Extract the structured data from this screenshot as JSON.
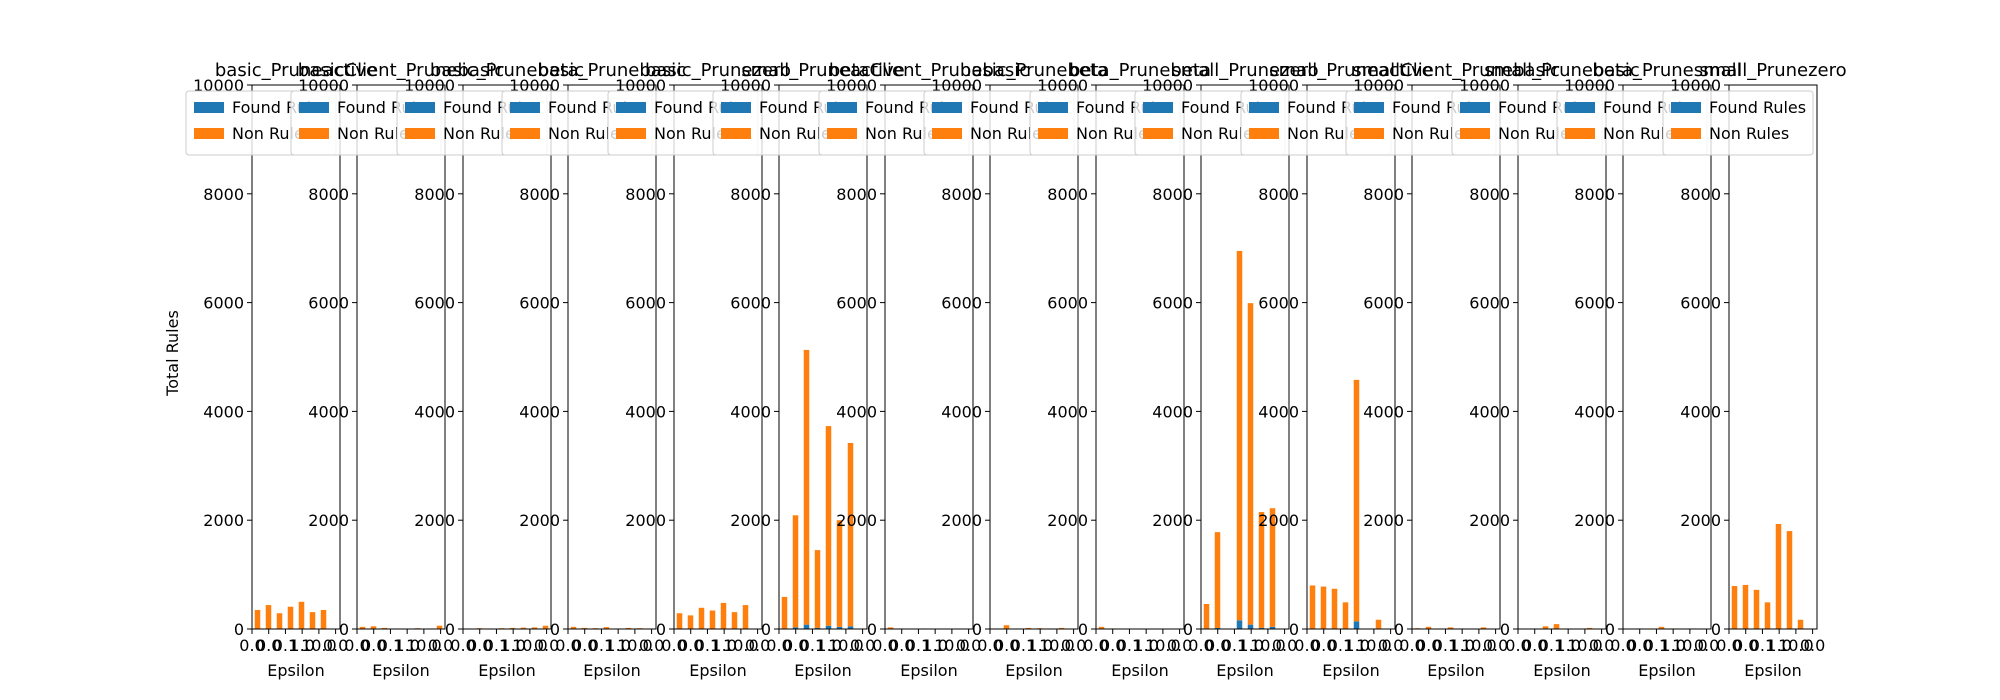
{
  "figure": {
    "ylabel": "Total Rules",
    "colors": {
      "found": "#1f77b4",
      "non": "#ff7f0e",
      "axis": "#000000",
      "legend_border": "#cccccc"
    }
  },
  "chart_data": [
    {
      "type": "bar",
      "stacked": true,
      "title": "basic_Pruneactive",
      "xlabel": "Epsilon",
      "ylabel": "Total Rules",
      "ylim": [
        0,
        10000
      ],
      "yticks": [
        0,
        2000,
        4000,
        6000,
        8000,
        10000
      ],
      "xticklabels": [
        "0.0",
        "0.0",
        "0.1",
        "1.0",
        "10.0",
        "0.0"
      ],
      "legend_position": "top-right",
      "series": [
        {
          "name": "Found Rules",
          "values": [
            0,
            0,
            0,
            0,
            0,
            0,
            0,
            0
          ]
        },
        {
          "name": "Non Rules",
          "values": [
            350,
            440,
            290,
            410,
            500,
            310,
            350,
            0
          ]
        }
      ]
    },
    {
      "type": "bar",
      "stacked": true,
      "title": "basicClient_Prunebasic",
      "xlabel": "Epsilon",
      "ylabel": "",
      "ylim": [
        0,
        10000
      ],
      "yticks": [
        0,
        2000,
        4000,
        6000,
        8000,
        10000
      ],
      "xticklabels": [
        "0.0",
        "0.0",
        "0.1",
        "1.0",
        "10.0",
        "0.0"
      ],
      "legend_position": "top-right",
      "series": [
        {
          "name": "Found Rules",
          "values": [
            0,
            0,
            0,
            0,
            0,
            0,
            0,
            0
          ]
        },
        {
          "name": "Non Rules",
          "values": [
            40,
            50,
            20,
            10,
            5,
            15,
            10,
            60
          ]
        }
      ]
    },
    {
      "type": "bar",
      "stacked": true,
      "title": "basic_Prunebasic",
      "xlabel": "Epsilon",
      "ylabel": "",
      "ylim": [
        0,
        10000
      ],
      "yticks": [
        0,
        2000,
        4000,
        6000,
        8000,
        10000
      ],
      "xticklabels": [
        "0.0",
        "0.0",
        "0.1",
        "1.0",
        "10.0",
        "0.0"
      ],
      "legend_position": "top-right",
      "series": [
        {
          "name": "Found Rules",
          "values": [
            0,
            0,
            0,
            0,
            0,
            0,
            0,
            0
          ]
        },
        {
          "name": "Non Rules",
          "values": [
            10,
            15,
            10,
            15,
            20,
            25,
            30,
            60
          ]
        }
      ]
    },
    {
      "type": "bar",
      "stacked": true,
      "title": "beta_Prunebasic",
      "xlabel": "Epsilon",
      "ylabel": "",
      "ylim": [
        0,
        10000
      ],
      "yticks": [
        0,
        2000,
        4000,
        6000,
        8000,
        10000
      ],
      "xticklabels": [
        "0.0",
        "0.0",
        "0.1",
        "1.0",
        "10.0",
        "0.0"
      ],
      "legend_position": "top-right",
      "series": [
        {
          "name": "Found Rules",
          "values": [
            0,
            0,
            0,
            0,
            0,
            0,
            0,
            0
          ]
        },
        {
          "name": "Non Rules",
          "values": [
            40,
            20,
            15,
            35,
            10,
            20,
            15,
            10
          ]
        }
      ]
    },
    {
      "type": "bar",
      "stacked": true,
      "title": "basic_Prunezero",
      "xlabel": "Epsilon",
      "ylabel": "",
      "ylim": [
        0,
        10000
      ],
      "yticks": [
        0,
        2000,
        4000,
        6000,
        8000,
        10000
      ],
      "xticklabels": [
        "0.0",
        "0.0",
        "0.1",
        "1.0",
        "10.0",
        "0.0"
      ],
      "legend_position": "top-right",
      "series": [
        {
          "name": "Found Rules",
          "values": [
            0,
            0,
            0,
            0,
            0,
            0,
            0,
            0
          ]
        },
        {
          "name": "Non Rules",
          "values": [
            290,
            250,
            390,
            340,
            480,
            310,
            440,
            0
          ]
        }
      ]
    },
    {
      "type": "bar",
      "stacked": true,
      "title": "small_Pruneactive",
      "xlabel": "Epsilon",
      "ylabel": "",
      "ylim": [
        0,
        10000
      ],
      "yticks": [
        0,
        2000,
        4000,
        6000,
        8000,
        10000
      ],
      "xticklabels": [
        "0.0",
        "0.0",
        "0.1",
        "1.0",
        "10.0",
        "0.0"
      ],
      "legend_position": "top-right",
      "series": [
        {
          "name": "Found Rules",
          "values": [
            10,
            30,
            80,
            20,
            60,
            40,
            50,
            0
          ]
        },
        {
          "name": "Non Rules",
          "values": [
            580,
            2060,
            5050,
            1430,
            3670,
            1960,
            3370,
            0
          ]
        }
      ]
    },
    {
      "type": "bar",
      "stacked": true,
      "title": "betaClient_Prunebasic",
      "xlabel": "Epsilon",
      "ylabel": "",
      "ylim": [
        0,
        10000
      ],
      "yticks": [
        0,
        2000,
        4000,
        6000,
        8000,
        10000
      ],
      "xticklabels": [
        "0.0",
        "0.0",
        "0.1",
        "1.0",
        "10.0",
        "0.0"
      ],
      "legend_position": "top-right",
      "series": [
        {
          "name": "Found Rules",
          "values": [
            0,
            0,
            0,
            0,
            0,
            0,
            0,
            0
          ]
        },
        {
          "name": "Non Rules",
          "values": [
            30,
            10,
            5,
            10,
            5,
            5,
            5,
            0
          ]
        }
      ]
    },
    {
      "type": "bar",
      "stacked": true,
      "title": "basic_Prunebeta",
      "xlabel": "Epsilon",
      "ylabel": "",
      "ylim": [
        0,
        10000
      ],
      "yticks": [
        0,
        2000,
        4000,
        6000,
        8000,
        10000
      ],
      "xticklabels": [
        "0.0",
        "0.0",
        "0.1",
        "1.0",
        "10.0",
        "0.0"
      ],
      "legend_position": "top-right",
      "series": [
        {
          "name": "Found Rules",
          "values": [
            0,
            0,
            0,
            0,
            0,
            0,
            0,
            0
          ]
        },
        {
          "name": "Non Rules",
          "values": [
            10,
            70,
            10,
            20,
            15,
            10,
            20,
            0
          ]
        }
      ]
    },
    {
      "type": "bar",
      "stacked": true,
      "title": "beta_Prunebeta",
      "xlabel": "Epsilon",
      "ylabel": "",
      "ylim": [
        0,
        10000
      ],
      "yticks": [
        0,
        2000,
        4000,
        6000,
        8000,
        10000
      ],
      "xticklabels": [
        "0.0",
        "0.0",
        "0.1",
        "1.0",
        "10.0",
        "0.0"
      ],
      "legend_position": "top-right",
      "series": [
        {
          "name": "Found Rules",
          "values": [
            0,
            0,
            0,
            0,
            0,
            0,
            0,
            0
          ]
        },
        {
          "name": "Non Rules",
          "values": [
            40,
            10,
            5,
            5,
            5,
            5,
            5,
            0
          ]
        }
      ]
    },
    {
      "type": "bar",
      "stacked": true,
      "title": "small_Prunezero",
      "xlabel": "Epsilon",
      "ylabel": "",
      "ylim": [
        0,
        10000
      ],
      "yticks": [
        0,
        2000,
        4000,
        6000,
        8000,
        10000
      ],
      "xticklabels": [
        "0.0",
        "0.0",
        "0.1",
        "1.0",
        "10.0",
        "0.0"
      ],
      "legend_position": "top-right",
      "series": [
        {
          "name": "Found Rules",
          "values": [
            10,
            20,
            0,
            160,
            80,
            20,
            40,
            0
          ]
        },
        {
          "name": "Non Rules",
          "values": [
            450,
            1760,
            0,
            6790,
            5910,
            2130,
            2180,
            0
          ]
        }
      ]
    },
    {
      "type": "bar",
      "stacked": true,
      "title": "small_Pruneactive",
      "xlabel": "Epsilon",
      "ylabel": "",
      "ylim": [
        0,
        10000
      ],
      "yticks": [
        0,
        2000,
        4000,
        6000,
        8000,
        10000
      ],
      "xticklabels": [
        "0.0",
        "0.0",
        "0.1",
        "1.0",
        "10.0",
        "0.0"
      ],
      "legend_position": "top-right",
      "series": [
        {
          "name": "Found Rules",
          "values": [
            0,
            0,
            0,
            0,
            140,
            0,
            10,
            0
          ]
        },
        {
          "name": "Non Rules",
          "values": [
            800,
            780,
            740,
            490,
            4440,
            0,
            160,
            0
          ]
        }
      ]
    },
    {
      "type": "bar",
      "stacked": true,
      "title": "smallClient_Prunebasic",
      "xlabel": "Epsilon",
      "ylabel": "",
      "ylim": [
        0,
        10000
      ],
      "yticks": [
        0,
        2000,
        4000,
        6000,
        8000,
        10000
      ],
      "xticklabels": [
        "0.0",
        "0.0",
        "0.1",
        "1.0",
        "10.0",
        "0.0"
      ],
      "legend_position": "top-right",
      "series": [
        {
          "name": "Found Rules",
          "values": [
            0,
            0,
            0,
            0,
            0,
            0,
            0,
            0
          ]
        },
        {
          "name": "Non Rules",
          "values": [
            15,
            40,
            10,
            30,
            10,
            5,
            30,
            0
          ]
        }
      ]
    },
    {
      "type": "bar",
      "stacked": true,
      "title": "small_Prunebasic",
      "xlabel": "Epsilon",
      "ylabel": "",
      "ylim": [
        0,
        10000
      ],
      "yticks": [
        0,
        2000,
        4000,
        6000,
        8000,
        10000
      ],
      "xticklabels": [
        "0.0",
        "0.0",
        "0.1",
        "1.0",
        "10.0",
        "0.0"
      ],
      "legend_position": "top-right",
      "series": [
        {
          "name": "Found Rules",
          "values": [
            0,
            0,
            0,
            0,
            0,
            0,
            0,
            0
          ]
        },
        {
          "name": "Non Rules",
          "values": [
            5,
            10,
            50,
            90,
            10,
            5,
            20,
            0
          ]
        }
      ]
    },
    {
      "type": "bar",
      "stacked": true,
      "title": "beta_Prunesmall",
      "xlabel": "Epsilon",
      "ylabel": "",
      "ylim": [
        0,
        10000
      ],
      "yticks": [
        0,
        2000,
        4000,
        6000,
        8000,
        10000
      ],
      "xticklabels": [
        "0.0",
        "0.0",
        "0.1",
        "1.0",
        "10.0",
        "0.0"
      ],
      "legend_position": "top-right",
      "series": [
        {
          "name": "Found Rules",
          "values": [
            0,
            0,
            0,
            0,
            0,
            0,
            0,
            0
          ]
        },
        {
          "name": "Non Rules",
          "values": [
            5,
            10,
            5,
            40,
            10,
            5,
            10,
            0
          ]
        }
      ]
    },
    {
      "type": "bar",
      "stacked": true,
      "title": "small_Prunezero",
      "xlabel": "Epsilon",
      "ylabel": "",
      "ylim": [
        0,
        10000
      ],
      "yticks": [
        0,
        2000,
        4000,
        6000,
        8000,
        10000
      ],
      "xticklabels": [
        "0.0",
        "0.0",
        "0.1",
        "1.0",
        "10.0",
        "0.0"
      ],
      "legend_position": "top-right",
      "series": [
        {
          "name": "Found Rules",
          "values": [
            0,
            0,
            0,
            0,
            0,
            0,
            0,
            0
          ]
        },
        {
          "name": "Non Rules",
          "values": [
            790,
            810,
            720,
            490,
            1930,
            1800,
            170,
            0
          ]
        }
      ]
    }
  ]
}
